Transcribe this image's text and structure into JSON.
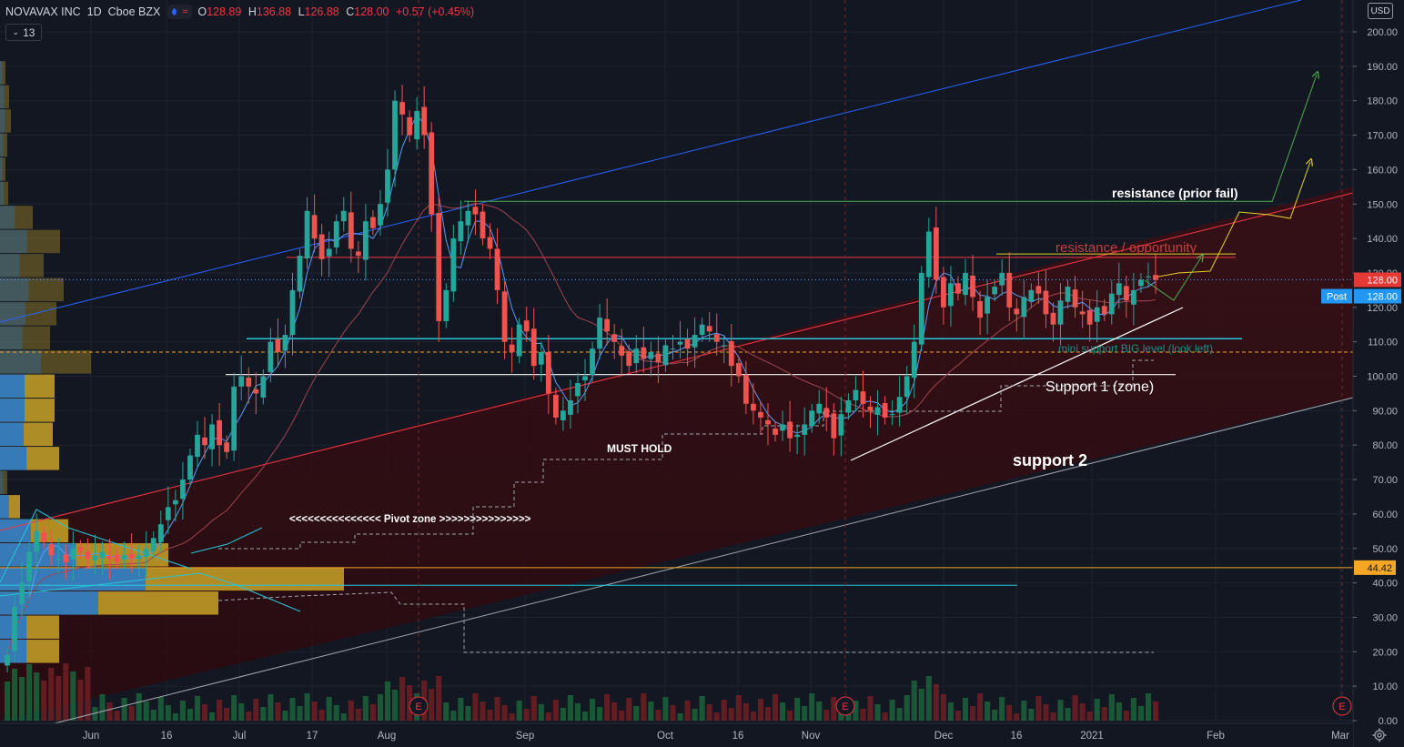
{
  "header": {
    "symbol": "NOVAVAX INC",
    "timeframe": "1D",
    "exchange": "Cboe BZX",
    "ohlc": [
      {
        "k": "O",
        "v": "128.89"
      },
      {
        "k": "H",
        "v": "136.88"
      },
      {
        "k": "L",
        "v": "126.88"
      },
      {
        "k": "C",
        "v": "128.00"
      }
    ],
    "change": "+0.57 (+0.45%)",
    "indicator_count": "13",
    "currency": "USD"
  },
  "colors": {
    "background": "#131722",
    "up": "#26a69a",
    "down": "#ef5350",
    "grid": "#1f2330",
    "blue_channel": "#2962ff",
    "red_channel": "#f23645",
    "white_channel": "#a3a6af",
    "resistance_green": "#4caf50",
    "resistance_yellow": "#e5d02a",
    "teal": "#26c6da",
    "orange": "#f5a623"
  },
  "chart_data": {
    "type": "candlestick",
    "ylim": [
      0,
      210
    ],
    "y_ticks": [
      "0.00",
      "10.00",
      "20.00",
      "30.00",
      "40.00",
      "50.00",
      "60.00",
      "70.00",
      "80.00",
      "90.00",
      "100.00",
      "110.00",
      "120.00",
      "130.00",
      "140.00",
      "150.00",
      "160.00",
      "170.00",
      "180.00",
      "190.00",
      "200.00"
    ],
    "x_ticks": [
      "Jun",
      "16",
      "Jul",
      "17",
      "Aug",
      "Sep",
      "Oct",
      "16",
      "Nov",
      "Dec",
      "16",
      "2021",
      "Feb",
      "Mar"
    ],
    "last_price": {
      "value": 128.0,
      "label": "128.00"
    },
    "post_market": {
      "tag": "Post",
      "label": "128.00"
    },
    "level_marker": {
      "value": 44.42,
      "label": "44.42"
    },
    "horizontal_levels": [
      {
        "value": 150.8,
        "color": "green"
      },
      {
        "value": 134.5,
        "color": "red"
      },
      {
        "value": 135.5,
        "color": "yellow"
      },
      {
        "value": 110.9,
        "color": "teal"
      },
      {
        "value": 100.5,
        "color": "white"
      },
      {
        "value": 107.0,
        "color": "orange-dashed"
      },
      {
        "value": 39.3,
        "color": "teal"
      },
      {
        "value": 44.42,
        "color": "orange"
      }
    ],
    "annotations": [
      {
        "text": "resistance (prior fail)",
        "style": "bold-white"
      },
      {
        "text": "resistance / opportunity",
        "style": "red"
      },
      {
        "text": "mini support BIG level (look left)",
        "style": "teal-small"
      },
      {
        "text": "Support 1 (zone)",
        "style": "white"
      },
      {
        "text": "support 2",
        "style": "bold-white"
      },
      {
        "text": "MUST HOLD",
        "style": "bold-white-small"
      },
      {
        "text": "<<<<<<<<<<<<<<< Pivot zone >>>>>>>>>>>>>>>",
        "style": "bold-white-small"
      }
    ],
    "earnings_markers": [
      "E",
      "E",
      "E"
    ],
    "candles_close": [
      19,
      33,
      40,
      49,
      55,
      52,
      48,
      47,
      46,
      50,
      49,
      47,
      48,
      49,
      47,
      46,
      48,
      47,
      48,
      50,
      53,
      57,
      62,
      64,
      70,
      77,
      83,
      80,
      86,
      80,
      78,
      97,
      100,
      97,
      95,
      100,
      110,
      107,
      112,
      125,
      135,
      148,
      140,
      134,
      137,
      145,
      148,
      137,
      135,
      145,
      143,
      150,
      160,
      180,
      176,
      170,
      177,
      170,
      147,
      116,
      125,
      140,
      145,
      148,
      147,
      140,
      137,
      125,
      110,
      107,
      115,
      113,
      103,
      107,
      95,
      88,
      90,
      93,
      98,
      100,
      108,
      117,
      113,
      110,
      106,
      103,
      108,
      105,
      107,
      104,
      109,
      108,
      110,
      108,
      112,
      115,
      113,
      110,
      109,
      103,
      100,
      92,
      90,
      88,
      86,
      83,
      86,
      82,
      83,
      86,
      90,
      92,
      88,
      82,
      89,
      93,
      96,
      92,
      90,
      91,
      88,
      89,
      94,
      100,
      110,
      130,
      142,
      128,
      120,
      127,
      124,
      130,
      123,
      117,
      123,
      126,
      130,
      120,
      118,
      123,
      125,
      124,
      118,
      115,
      122,
      126,
      120,
      118,
      115,
      120,
      118,
      124,
      127,
      122,
      125,
      128,
      129,
      128
    ]
  }
}
